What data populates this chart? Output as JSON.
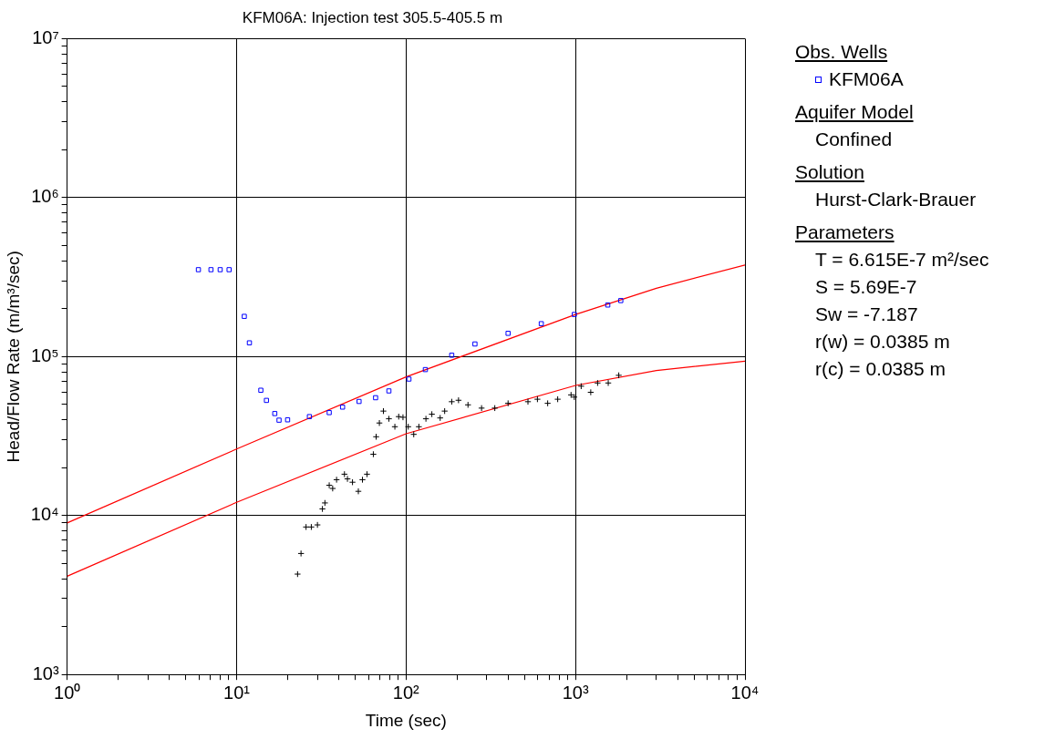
{
  "chart_data": {
    "type": "scatter",
    "title": "KFM06A: Injection test 305.5-405.5 m",
    "xlabel": "Time (sec)",
    "ylabel": "Head/Flow Rate (m/m³/sec)",
    "legend_title": "Obs. Wells",
    "legend": "right",
    "log": "xy",
    "grid": true,
    "xlim": [
      1,
      10000
    ],
    "ylim": [
      1000,
      10000000
    ],
    "xticks": [
      {
        "value": 1,
        "label": "10⁰"
      },
      {
        "value": 2,
        "label": null
      },
      {
        "value": 3,
        "label": null
      },
      {
        "value": 4,
        "label": null
      },
      {
        "value": 5,
        "label": null
      },
      {
        "value": 6,
        "label": null
      },
      {
        "value": 7,
        "label": null
      },
      {
        "value": 8,
        "label": null
      },
      {
        "value": 9,
        "label": null
      },
      {
        "value": 10,
        "label": "10¹"
      },
      {
        "value": 20,
        "label": null
      },
      {
        "value": 30,
        "label": null
      },
      {
        "value": 40,
        "label": null
      },
      {
        "value": 50,
        "label": null
      },
      {
        "value": 60,
        "label": null
      },
      {
        "value": 70,
        "label": null
      },
      {
        "value": 80,
        "label": null
      },
      {
        "value": 90,
        "label": null
      },
      {
        "value": 100,
        "label": "10²"
      },
      {
        "value": 200,
        "label": null
      },
      {
        "value": 300,
        "label": null
      },
      {
        "value": 400,
        "label": null
      },
      {
        "value": 500,
        "label": null
      },
      {
        "value": 600,
        "label": null
      },
      {
        "value": 700,
        "label": null
      },
      {
        "value": 800,
        "label": null
      },
      {
        "value": 900,
        "label": null
      },
      {
        "value": 1000,
        "label": "10³"
      },
      {
        "value": 2000,
        "label": null
      },
      {
        "value": 3000,
        "label": null
      },
      {
        "value": 4000,
        "label": null
      },
      {
        "value": 5000,
        "label": null
      },
      {
        "value": 6000,
        "label": null
      },
      {
        "value": 7000,
        "label": null
      },
      {
        "value": 8000,
        "label": null
      },
      {
        "value": 9000,
        "label": null
      },
      {
        "value": 10000,
        "label": "10⁴"
      }
    ],
    "yticks": [
      {
        "value": 1000,
        "label": "10³"
      },
      {
        "value": 2000,
        "label": null
      },
      {
        "value": 3000,
        "label": null
      },
      {
        "value": 4000,
        "label": null
      },
      {
        "value": 5000,
        "label": null
      },
      {
        "value": 6000,
        "label": null
      },
      {
        "value": 7000,
        "label": null
      },
      {
        "value": 8000,
        "label": null
      },
      {
        "value": 9000,
        "label": null
      },
      {
        "value": 10000,
        "label": "10⁴"
      },
      {
        "value": 20000,
        "label": null
      },
      {
        "value": 30000,
        "label": null
      },
      {
        "value": 40000,
        "label": null
      },
      {
        "value": 50000,
        "label": null
      },
      {
        "value": 60000,
        "label": null
      },
      {
        "value": 70000,
        "label": null
      },
      {
        "value": 80000,
        "label": null
      },
      {
        "value": 90000,
        "label": null
      },
      {
        "value": 100000,
        "label": "10⁵"
      },
      {
        "value": 200000,
        "label": null
      },
      {
        "value": 300000,
        "label": null
      },
      {
        "value": 400000,
        "label": null
      },
      {
        "value": 500000,
        "label": null
      },
      {
        "value": 600000,
        "label": null
      },
      {
        "value": 700000,
        "label": null
      },
      {
        "value": 800000,
        "label": null
      },
      {
        "value": 900000,
        "label": null
      },
      {
        "value": 1000000,
        "label": "10⁶"
      },
      {
        "value": 2000000,
        "label": null
      },
      {
        "value": 3000000,
        "label": null
      },
      {
        "value": 4000000,
        "label": null
      },
      {
        "value": 5000000,
        "label": null
      },
      {
        "value": 6000000,
        "label": null
      },
      {
        "value": 7000000,
        "label": null
      },
      {
        "value": 8000000,
        "label": null
      },
      {
        "value": 9000000,
        "label": null
      },
      {
        "value": 10000000,
        "label": "10⁷"
      }
    ],
    "series": [
      {
        "name": "KFM06A",
        "marker": "square",
        "color": "#0000ff",
        "x": [
          5.95,
          7.06,
          8.0,
          9.03,
          11.1,
          11.9,
          13.9,
          15.0,
          16.8,
          17.8,
          20.0,
          26.9,
          35.2,
          42.2,
          52.8,
          66.1,
          79.2,
          104,
          130,
          186,
          255,
          400,
          628,
          984,
          1550,
          1850
        ],
        "values": [
          352000,
          352000,
          352000,
          352000,
          179000,
          122000,
          61400,
          53000,
          43800,
          39800,
          40000,
          41900,
          44400,
          48100,
          52200,
          55100,
          60800,
          72200,
          82800,
          102000,
          120000,
          140000,
          161000,
          184000,
          211000,
          225000
        ]
      },
      {
        "marker": "cross",
        "color": "#000000",
        "x": [
          22.9,
          24.0,
          25.7,
          27.6,
          30.0,
          32.1,
          33.2,
          35.2,
          36.9,
          38.9,
          43.3,
          45.1,
          48.3,
          52.3,
          55.3,
          58.8,
          64.1,
          66.6,
          69.6,
          73.5,
          79.2,
          85.9,
          90.5,
          95.9,
          103,
          111,
          119,
          131,
          142,
          159,
          169,
          186,
          204,
          232,
          279,
          334,
          400,
          524,
          596,
          685,
          785,
          941,
          984,
          1080,
          1230,
          1350,
          1560,
          1800
        ],
        "values": [
          4280,
          5770,
          8470,
          8470,
          8730,
          11000,
          12000,
          15500,
          14800,
          16800,
          18200,
          17000,
          16200,
          14200,
          16800,
          18200,
          24300,
          31300,
          38200,
          45400,
          40600,
          36200,
          41900,
          41500,
          36200,
          32400,
          36200,
          40600,
          43400,
          41100,
          45400,
          52000,
          53100,
          49700,
          47400,
          47400,
          50800,
          52000,
          53900,
          50800,
          53900,
          57400,
          55600,
          65100,
          59600,
          68200,
          68200,
          76200
        ]
      },
      {
        "type": "line",
        "marker": "none",
        "color": "#ff0000",
        "x": [
          1,
          10,
          100,
          1000,
          3000,
          10000
        ],
        "values": [
          8980,
          26200,
          74500,
          184000,
          269000,
          377000
        ]
      },
      {
        "type": "line",
        "marker": "none",
        "color": "#ff0000",
        "x": [
          1,
          10,
          100,
          1000,
          3000,
          10000
        ],
        "values": [
          4150,
          12100,
          32700,
          65800,
          81700,
          93500
        ]
      }
    ],
    "annotations": [
      "Aquifer Model",
      "Confined",
      "Solution",
      "Hurst-Clark-Brauer",
      "Parameters",
      "T = 6.615E-7 m²/sec",
      "S = 5.69E-7",
      "Sw = -7.187",
      "r(w) = 0.0385 m",
      "r(c) = 0.0385 m"
    ]
  }
}
